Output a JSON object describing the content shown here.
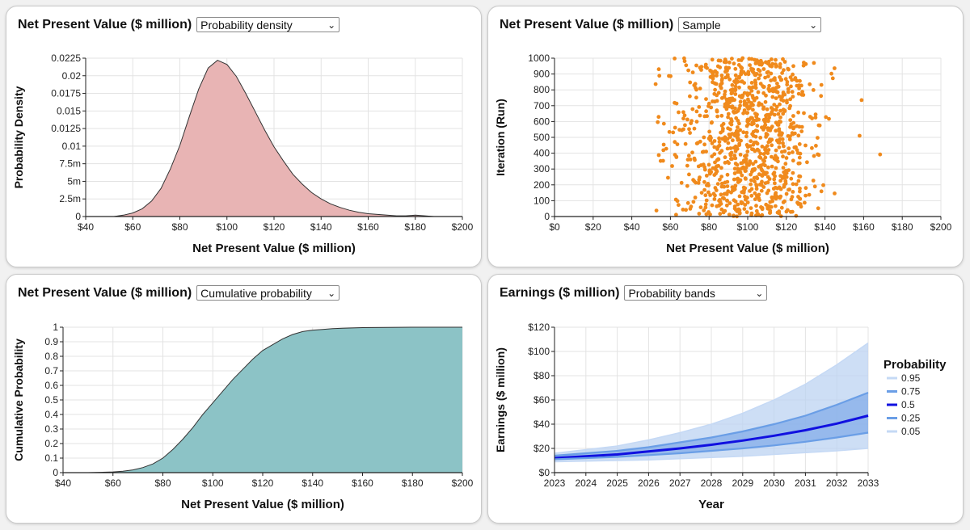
{
  "panels": [
    {
      "title": "Net Present Value ($ million)",
      "dropdown": "Probability density",
      "chart_data": {
        "type": "area",
        "xlabel": "Net Present Value ($ million)",
        "ylabel": "Probability Density",
        "xlim": [
          40,
          200
        ],
        "ylim": [
          0,
          0.0225
        ],
        "x_ticks": [
          40,
          60,
          80,
          100,
          120,
          140,
          160,
          180,
          200
        ],
        "x_tick_labels": [
          "$40",
          "$60",
          "$80",
          "$100",
          "$120",
          "$140",
          "$160",
          "$180",
          "$200"
        ],
        "y_ticks": [
          0,
          0.0025,
          0.005,
          0.0075,
          0.01,
          0.0125,
          0.015,
          0.0175,
          0.02,
          0.0225
        ],
        "y_tick_labels": [
          "0",
          "2.5m",
          "5m",
          "7.5m",
          "0.01",
          "0.0125",
          "0.015",
          "0.0175",
          "0.02",
          "0.0225"
        ],
        "x": [
          52,
          56,
          60,
          64,
          68,
          72,
          76,
          80,
          84,
          88,
          92,
          96,
          100,
          104,
          108,
          112,
          116,
          120,
          124,
          128,
          132,
          136,
          140,
          144,
          148,
          152,
          156,
          160,
          164,
          168,
          172,
          176,
          180,
          184,
          188
        ],
        "y": [
          0,
          0.0002,
          0.0005,
          0.0011,
          0.0022,
          0.004,
          0.0068,
          0.0101,
          0.0142,
          0.0181,
          0.0211,
          0.0222,
          0.0216,
          0.0199,
          0.0175,
          0.0149,
          0.0123,
          0.0099,
          0.0079,
          0.006,
          0.0046,
          0.0034,
          0.0025,
          0.0018,
          0.0013,
          0.0009,
          0.0006,
          0.0004,
          0.0003,
          0.0002,
          0.0001,
          0.0001,
          0.0002,
          0.0001,
          0
        ],
        "fill": "#e8b4b4",
        "stroke": "#333333",
        "grid": true
      }
    },
    {
      "title": "Net Present Value ($ million)",
      "dropdown": "Sample",
      "chart_data": {
        "type": "scatter",
        "xlabel": "Net Present Value ($ million)",
        "ylabel": "Iteration (Run)",
        "xlim": [
          0,
          200
        ],
        "ylim": [
          0,
          1000
        ],
        "x_ticks": [
          0,
          20,
          40,
          60,
          80,
          100,
          120,
          140,
          160,
          180,
          200
        ],
        "x_tick_labels": [
          "$0",
          "$20",
          "$40",
          "$60",
          "$80",
          "$100",
          "$120",
          "$140",
          "$160",
          "$180",
          "$200"
        ],
        "y_ticks": [
          0,
          100,
          200,
          300,
          400,
          500,
          600,
          700,
          800,
          900,
          1000
        ],
        "y_tick_labels": [
          "0",
          "100",
          "200",
          "300",
          "400",
          "500",
          "600",
          "700",
          "800",
          "900",
          "1000"
        ],
        "n_points": 1000,
        "mean": 100,
        "sd": 18,
        "color": "#f08a1c",
        "grid": true
      }
    },
    {
      "title": "Net Present Value ($ million)",
      "dropdown": "Cumulative probability",
      "chart_data": {
        "type": "area",
        "xlabel": "Net Present Value ($ million)",
        "ylabel": "Cumulative Probability",
        "xlim": [
          40,
          200
        ],
        "ylim": [
          0,
          1
        ],
        "x_ticks": [
          40,
          60,
          80,
          100,
          120,
          140,
          160,
          180,
          200
        ],
        "x_tick_labels": [
          "$40",
          "$60",
          "$80",
          "$100",
          "$120",
          "$140",
          "$160",
          "$180",
          "$200"
        ],
        "y_ticks": [
          0,
          0.1,
          0.2,
          0.3,
          0.4,
          0.5,
          0.6,
          0.7,
          0.8,
          0.9,
          1
        ],
        "y_tick_labels": [
          "0",
          "0.1",
          "0.2",
          "0.3",
          "0.4",
          "0.5",
          "0.6",
          "0.7",
          "0.8",
          "0.9",
          "1"
        ],
        "x": [
          40,
          50,
          55,
          60,
          64,
          68,
          72,
          76,
          80,
          84,
          88,
          92,
          96,
          100,
          104,
          108,
          112,
          116,
          120,
          124,
          128,
          132,
          136,
          140,
          144,
          148,
          152,
          156,
          160,
          170,
          180,
          190,
          200
        ],
        "y": [
          0,
          0,
          0.002,
          0.005,
          0.01,
          0.019,
          0.035,
          0.06,
          0.1,
          0.16,
          0.23,
          0.31,
          0.4,
          0.48,
          0.56,
          0.64,
          0.71,
          0.78,
          0.84,
          0.88,
          0.92,
          0.95,
          0.97,
          0.98,
          0.985,
          0.99,
          0.993,
          0.995,
          0.997,
          0.999,
          1,
          1,
          1
        ],
        "fill": "#8cc3c6",
        "stroke": "#333333",
        "grid": true
      }
    },
    {
      "title": "Earnings ($ million)",
      "dropdown": "Probability bands",
      "chart_data": {
        "type": "area",
        "xlabel": "Year",
        "ylabel": "Earnings ($ million)",
        "xlim": [
          2023,
          2033
        ],
        "ylim": [
          0,
          120
        ],
        "x_ticks": [
          2023,
          2024,
          2025,
          2026,
          2027,
          2028,
          2029,
          2030,
          2031,
          2032,
          2033
        ],
        "x_tick_labels": [
          "2023",
          "2024",
          "2025",
          "2026",
          "2027",
          "2028",
          "2029",
          "2030",
          "2031",
          "2032",
          "2033"
        ],
        "y_ticks": [
          0,
          20,
          40,
          60,
          80,
          100,
          120
        ],
        "y_tick_labels": [
          "$0",
          "$20",
          "$40",
          "$60",
          "$80",
          "$100",
          "$120"
        ],
        "x": [
          2023,
          2024,
          2025,
          2026,
          2027,
          2028,
          2029,
          2030,
          2031,
          2032,
          2033
        ],
        "series": [
          {
            "name": "0.95",
            "values": [
              16,
              19,
              22,
              27,
              33,
              40,
              49,
              60,
              73,
              89,
              107
            ],
            "color": "#c5d9f5"
          },
          {
            "name": "0.75",
            "values": [
              14,
              16,
              18,
              21,
              25,
              29,
              34,
              40,
              47,
              56,
              66
            ],
            "color": "#6a9ee6"
          },
          {
            "name": "0.5",
            "values": [
              12,
              13.5,
              15,
              17.5,
              20,
              23,
              26.5,
              30.5,
              35,
              40.5,
              47
            ],
            "color": "#1010e0"
          },
          {
            "name": "0.25",
            "values": [
              11,
              12,
              13,
              14.5,
              16,
              18,
              20,
              22.5,
              25.5,
              29,
              33
            ],
            "color": "#6a9ee6"
          },
          {
            "name": "0.05",
            "values": [
              9,
              9.5,
              10,
              10.5,
              11.5,
              12.5,
              13.5,
              15,
              16.5,
              18,
              20
            ],
            "color": "#c5d9f5"
          }
        ],
        "legend_title": "Probability",
        "legend_placement": "right",
        "grid": true
      }
    }
  ]
}
